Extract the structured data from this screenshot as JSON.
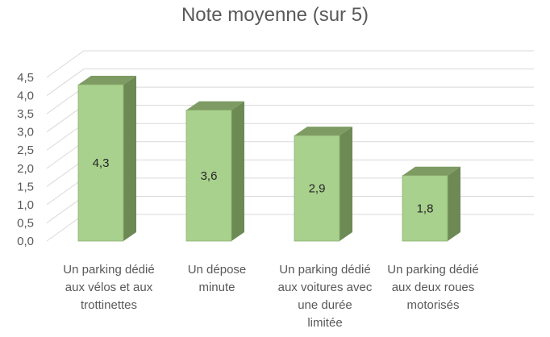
{
  "chart_data": {
    "type": "bar",
    "title": "Note moyenne (sur 5)",
    "categories": [
      "Un parking dédié aux vélos et aux trottinettes",
      "Un dépose minute",
      "Un parking dédié aux voitures avec une durée limitée",
      "Un parking dédié aux deux roues motorisés"
    ],
    "category_lines": [
      [
        "Un parking dédié",
        "aux vélos et aux",
        "trottinettes"
      ],
      [
        "Un dépose",
        "minute"
      ],
      [
        "Un parking dédié",
        "aux voitures avec",
        "une durée",
        "limitée"
      ],
      [
        "Un parking dédié",
        "aux deux roues",
        "motorisés"
      ]
    ],
    "values": [
      4.3,
      3.6,
      2.9,
      1.8
    ],
    "data_labels": [
      "4,3",
      "3,6",
      "2,9",
      "1,8"
    ],
    "ylim": [
      0,
      4.5
    ],
    "yticks": [
      "0,0",
      "0,5",
      "1,0",
      "1,5",
      "2,0",
      "2,5",
      "3,0",
      "3,5",
      "4,0",
      "4,5"
    ],
    "grid": true,
    "three_d": true,
    "legend": "none",
    "colors": {
      "bar_front": "#a9d18e",
      "bar_side": "#6d8a54",
      "bar_top": "#7d9b63",
      "bar_edge": "#8fb170",
      "grid": "#d9d9d9",
      "text": "#595959"
    }
  }
}
